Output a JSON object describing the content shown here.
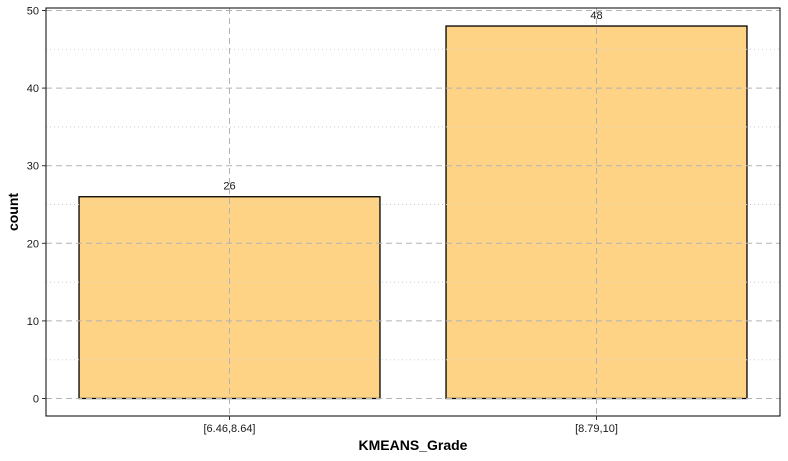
{
  "chart_data": {
    "type": "bar",
    "categories": [
      "[6.46,8.64]",
      "[8.79,10]"
    ],
    "values": [
      26,
      48
    ],
    "data_labels": [
      "26",
      "48"
    ],
    "xlabel": "KMEANS_Grade",
    "ylabel": "count",
    "ylim": [
      0,
      50
    ],
    "yticks": [
      0,
      10,
      20,
      30,
      40,
      50
    ],
    "grid": true,
    "bar_color": "#fed386",
    "bar_border_color": "#000000",
    "grid_color": "#b3b3b3"
  }
}
